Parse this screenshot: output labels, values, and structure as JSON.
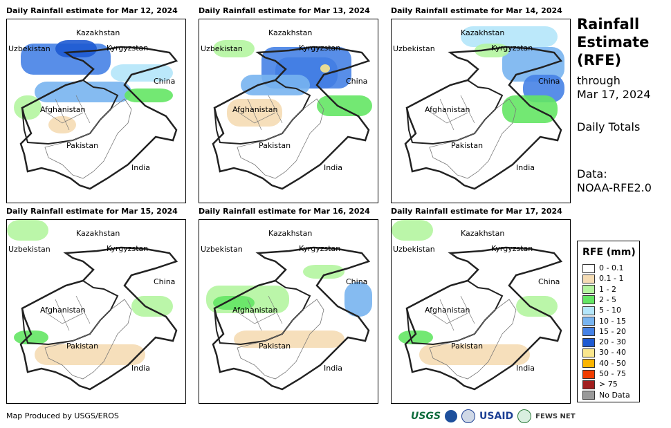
{
  "panels": [
    {
      "title": "Daily Rainfall estimate for Mar 12, 2024",
      "level": "high"
    },
    {
      "title": "Daily Rainfall estimate for Mar 13, 2024",
      "level": "high2"
    },
    {
      "title": "Daily Rainfall estimate for Mar 14, 2024",
      "level": "mid"
    },
    {
      "title": "Daily Rainfall estimate for Mar 15, 2024",
      "level": "low"
    },
    {
      "title": "Daily Rainfall estimate for Mar 16, 2024",
      "level": "midlow"
    },
    {
      "title": "Daily Rainfall estimate for Mar 17, 2024",
      "level": "low"
    }
  ],
  "map_labels": {
    "kazakhstan": "Kazakhstan",
    "uzbekistan": "Uzbekistan",
    "kyrgyzstan": "Kyrgyzstan",
    "china": "China",
    "afghanistan": "Afghanistan",
    "pakistan": "Pakistan",
    "india": "India"
  },
  "side": {
    "title_line1": "Rainfall",
    "title_line2": "Estimate",
    "title_line3": "(RFE)",
    "through_line1": "through",
    "through_line2": "Mar 17, 2024",
    "totals": "Daily Totals",
    "data_line1": "Data:",
    "data_line2": "NOAA-RFE2.0"
  },
  "legend": {
    "title": "RFE (mm)",
    "items": [
      {
        "label": "0 - 0.1",
        "color": "#ffffff"
      },
      {
        "label": "0.1 - 1",
        "color": "#f5dcb4"
      },
      {
        "label": "1 - 2",
        "color": "#b4f5a0"
      },
      {
        "label": "2 - 5",
        "color": "#64e664"
      },
      {
        "label": "5 - 10",
        "color": "#b4e6fa"
      },
      {
        "label": "10 - 15",
        "color": "#78b4f0"
      },
      {
        "label": "15 - 20",
        "color": "#4682e6"
      },
      {
        "label": "20 - 30",
        "color": "#1e5ad2"
      },
      {
        "label": "30 - 40",
        "color": "#fae68c"
      },
      {
        "label": "40 - 50",
        "color": "#fab400"
      },
      {
        "label": "50 - 75",
        "color": "#f03c00"
      },
      {
        "label": "> 75",
        "color": "#a01e1e"
      },
      {
        "label": "No Data",
        "color": "#999999"
      }
    ]
  },
  "credit": "Map Produced by USGS/EROS",
  "logos": {
    "usgs": "USGS",
    "usaid": "USAID",
    "fews": "FEWS NET"
  }
}
